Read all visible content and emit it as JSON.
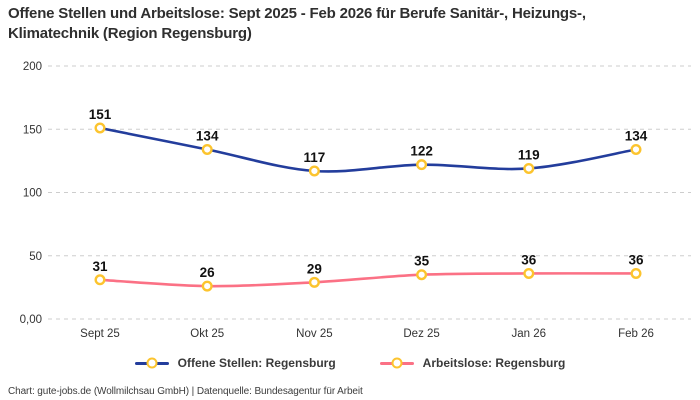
{
  "footer": "Chart: gute-jobs.de (Wollmilchsau GmbH) | Datenquelle: Bundesagentur für Arbeit",
  "colors": {
    "series1": "#233d9c",
    "series2": "#fb7185",
    "marker_ring": "#fcc42e",
    "marker_fill": "#ffffff",
    "gridline": "#cdcdcd",
    "tick_text": "#333333",
    "data_label": "#111111"
  },
  "chart_data": {
    "type": "line",
    "title": "Offene Stellen und Arbeitslose: Sept 2025 - Feb 2026 für Berufe Sanitär-, Heizungs-, Klimatechnik (Region Regensburg)",
    "categories": [
      "Sept 25",
      "Okt 25",
      "Nov 25",
      "Dez 25",
      "Jan 26",
      "Feb 26"
    ],
    "series": [
      {
        "name": "Offene Stellen: Regensburg",
        "color": "#233d9c",
        "values": [
          151,
          134,
          117,
          122,
          119,
          134
        ]
      },
      {
        "name": "Arbeitslose: Regensburg",
        "color": "#fb7185",
        "values": [
          31,
          26,
          29,
          35,
          36,
          36
        ]
      }
    ],
    "xlabel": "",
    "ylabel": "",
    "ylim": [
      0,
      200
    ],
    "yticks": {
      "values": [
        0,
        50,
        100,
        150,
        200
      ],
      "labels": [
        "0,00",
        "50",
        "100",
        "150",
        "200"
      ]
    },
    "grid": true,
    "grid_style": "dashed",
    "marker": "open-circle",
    "data_labels": true,
    "legend_position": "bottom"
  }
}
